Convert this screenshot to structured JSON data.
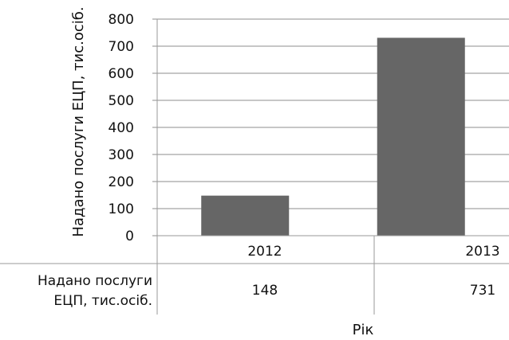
{
  "chart_data": {
    "type": "bar",
    "categories": [
      "2012",
      "2013"
    ],
    "series": [
      {
        "name": "Надано послуги ЕЦП, тис.осіб.",
        "values": [
          148,
          731
        ],
        "color": "#666666"
      }
    ],
    "ylabel": "Надано послуги ЕЦП, тис.осіб.",
    "xlabel": "Рік",
    "ylim": [
      0,
      800
    ],
    "y_ticks": [
      "0",
      "100",
      "200",
      "300",
      "400",
      "500",
      "600",
      "700",
      "800"
    ],
    "grid": true,
    "data_table": {
      "row_label_lines": [
        "Надано послуги",
        "ЕЦП, тис.осіб."
      ],
      "values": [
        "148",
        "731"
      ]
    }
  }
}
